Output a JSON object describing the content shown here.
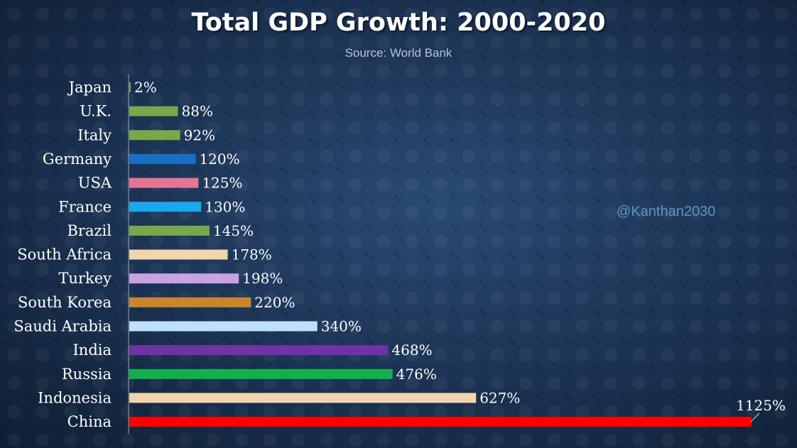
{
  "chart_data": {
    "type": "bar",
    "orientation": "horizontal",
    "title": "Total GDP Growth: 2000-2020",
    "subtitle": "Source: World Bank",
    "categories": [
      "Japan",
      "U.K.",
      "Italy",
      "Germany",
      "USA",
      "France",
      "Brazil",
      "South Africa",
      "Turkey",
      "South Korea",
      "Saudi Arabia",
      "India",
      "Russia",
      "Indonesia",
      "China"
    ],
    "values": [
      2,
      88,
      92,
      120,
      125,
      130,
      145,
      178,
      198,
      220,
      340,
      468,
      476,
      627,
      1125
    ],
    "data_labels": [
      "2%",
      "88%",
      "92%",
      "120%",
      "125%",
      "130%",
      "145%",
      "178%",
      "198%",
      "220%",
      "340%",
      "468%",
      "476%",
      "627%",
      "1125%"
    ],
    "colors": [
      "#77a84a",
      "#77a84a",
      "#77a84a",
      "#1a6fc4",
      "#e57595",
      "#1aa7ec",
      "#77a84a",
      "#f1d5ac",
      "#c8a2e2",
      "#c8852c",
      "#bfe0fb",
      "#7033a7",
      "#12b04b",
      "#f1d5ac",
      "#ff0000"
    ],
    "xlim": [
      0,
      1125
    ],
    "xlabel": "",
    "ylabel": "",
    "grid": false,
    "legend": "none"
  },
  "watermark": "@Kanthan2030"
}
